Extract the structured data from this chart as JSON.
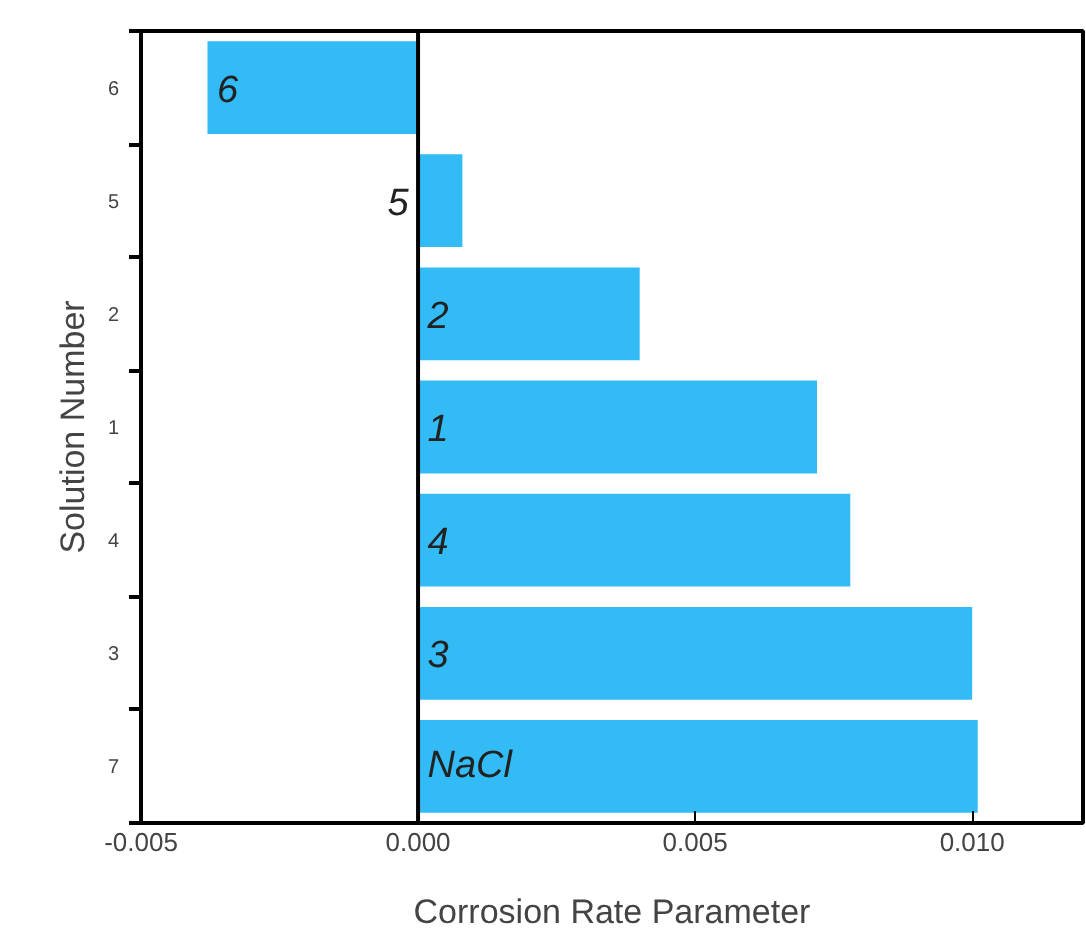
{
  "chart_data": {
    "type": "bar",
    "orientation": "horizontal",
    "xlabel": "Corrosion Rate Parameter",
    "ylabel": "Solution Number",
    "categories": [
      "6",
      "5",
      "2",
      "1",
      "4",
      "3",
      "7"
    ],
    "values": [
      -0.0038,
      0.0008,
      0.004,
      0.0072,
      0.0078,
      0.01,
      0.0101
    ],
    "color": "#33bbf5",
    "xlim": [
      -0.005,
      0.012
    ],
    "xticks": [
      {
        "value": -0.005,
        "label": "-0.005"
      },
      {
        "value": 0,
        "label": "0.000"
      },
      {
        "value": 0.005,
        "label": "0.005"
      },
      {
        "value": 0.01,
        "label": "0.010"
      }
    ],
    "ref_lines": [
      {
        "axis": "x",
        "value": 0,
        "color": "#000000"
      }
    ],
    "annotations": [
      "6",
      "5",
      "2",
      "1",
      "4",
      "3",
      "NaCl"
    ],
    "grid": false
  }
}
